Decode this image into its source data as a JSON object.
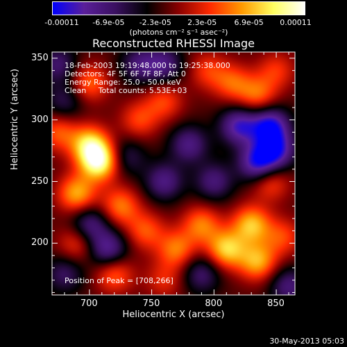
{
  "chart_data": {
    "type": "heatmap",
    "title": "Reconstructed RHESSI Image",
    "xlabel": "Heliocentric X (arcsec)",
    "ylabel": "Heliocentric Y (arcsec)",
    "xlim": [
      670,
      865
    ],
    "ylim": [
      158,
      355
    ],
    "x_ticks": [
      700,
      750,
      800,
      850
    ],
    "y_ticks": [
      200,
      250,
      300,
      350
    ],
    "colorbar": {
      "min": -0.00011,
      "max": 0.00011,
      "tick_labels": [
        "-0.00011",
        "-6.9e-05",
        "-2.3e-05",
        "2.3e-05",
        "6.9e-05",
        "0.00011"
      ],
      "units": "(photons cm⁻² s⁻¹ asec⁻²)",
      "colormap": [
        "#0000ff",
        "#5a1f9a",
        "#3a1060",
        "#000000",
        "#8a0000",
        "#ff2a00",
        "#ff9a00",
        "#ffff60",
        "#ffffff"
      ]
    },
    "annotations": {
      "time": "18-Feb-2003 19:19:48.000 to 19:25:38.000",
      "detectors": "Detectors: 4F 5F 6F 7F 8F, Att 0",
      "energy": "Energy Range: 25.0 - 50.0 keV",
      "clean": "Clean     Total counts: 5.53E+03",
      "peak": "Position of Peak = [708,266]"
    },
    "sources": [
      {
        "x": 708,
        "y": 266,
        "value": 0.00011
      },
      {
        "x": 700,
        "y": 280,
        "value": 8.5e-05
      },
      {
        "x": 690,
        "y": 240,
        "value": 7.5e-05
      },
      {
        "x": 675,
        "y": 290,
        "value": 5e-05
      },
      {
        "x": 700,
        "y": 330,
        "value": 5.5e-05
      },
      {
        "x": 740,
        "y": 300,
        "value": 4.5e-05
      },
      {
        "x": 760,
        "y": 315,
        "value": 4.5e-05
      },
      {
        "x": 725,
        "y": 230,
        "value": 6e-05
      },
      {
        "x": 745,
        "y": 210,
        "value": 5e-05
      },
      {
        "x": 720,
        "y": 175,
        "value": 5.5e-05
      },
      {
        "x": 690,
        "y": 200,
        "value": 4.5e-05
      },
      {
        "x": 770,
        "y": 195,
        "value": 6e-05
      },
      {
        "x": 790,
        "y": 215,
        "value": 6e-05
      },
      {
        "x": 810,
        "y": 195,
        "value": 8.5e-05
      },
      {
        "x": 830,
        "y": 215,
        "value": 8e-05
      },
      {
        "x": 835,
        "y": 185,
        "value": 7.5e-05
      },
      {
        "x": 845,
        "y": 250,
        "value": 5e-05
      },
      {
        "x": 855,
        "y": 205,
        "value": 4.5e-05
      },
      {
        "x": 815,
        "y": 330,
        "value": 5e-05
      },
      {
        "x": 835,
        "y": 320,
        "value": 5.5e-05
      },
      {
        "x": 795,
        "y": 340,
        "value": 4e-05
      },
      {
        "x": 850,
        "y": 340,
        "value": 4e-05
      },
      {
        "x": 760,
        "y": 170,
        "value": 3.5e-05
      },
      {
        "x": 700,
        "y": 215,
        "value": -6e-05
      },
      {
        "x": 715,
        "y": 195,
        "value": -7e-05
      },
      {
        "x": 760,
        "y": 250,
        "value": -6e-05
      },
      {
        "x": 780,
        "y": 280,
        "value": -6e-05
      },
      {
        "x": 800,
        "y": 250,
        "value": -5.5e-05
      },
      {
        "x": 835,
        "y": 265,
        "value": -9e-05
      },
      {
        "x": 845,
        "y": 295,
        "value": -9.5e-05
      },
      {
        "x": 820,
        "y": 295,
        "value": -8e-05
      },
      {
        "x": 850,
        "y": 275,
        "value": -8e-05
      },
      {
        "x": 760,
        "y": 345,
        "value": -5.5e-05
      },
      {
        "x": 740,
        "y": 345,
        "value": -5e-05
      },
      {
        "x": 675,
        "y": 345,
        "value": -5e-05
      },
      {
        "x": 790,
        "y": 175,
        "value": -5e-05
      },
      {
        "x": 680,
        "y": 175,
        "value": -4.5e-05
      },
      {
        "x": 860,
        "y": 165,
        "value": -5.5e-05
      },
      {
        "x": 730,
        "y": 270,
        "value": -4e-05
      },
      {
        "x": 680,
        "y": 315,
        "value": -4e-05
      }
    ]
  },
  "footer": {
    "date": "30-May-2013 05:03"
  }
}
